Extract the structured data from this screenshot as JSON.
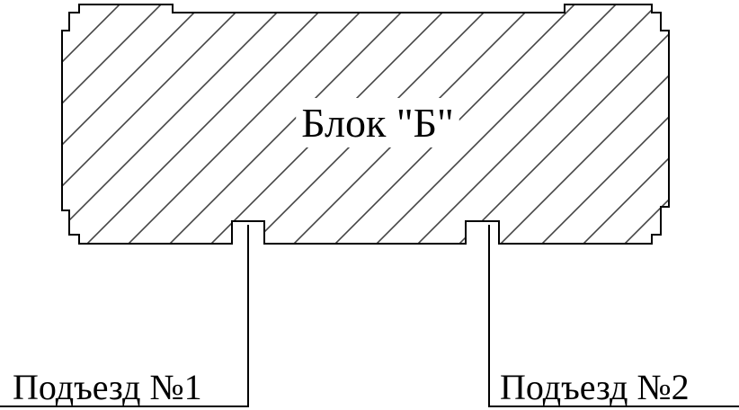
{
  "diagram": {
    "block_label": "Блок \"Б\"",
    "entrances": [
      {
        "label": "Подъезд №1"
      },
      {
        "label": "Подъезд №2"
      }
    ]
  },
  "colors": {
    "stroke": "#000000",
    "hatch": "#444444",
    "background": "#ffffff"
  }
}
